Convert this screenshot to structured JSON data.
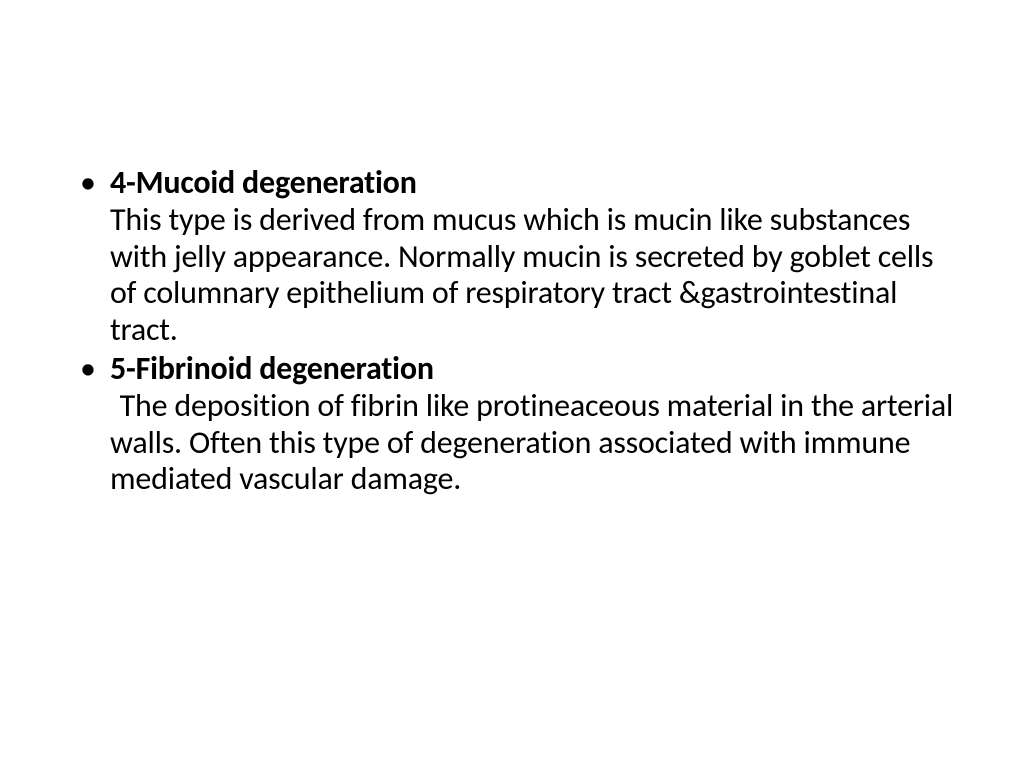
{
  "slide": {
    "background_color": "#ffffff",
    "text_color": "#000000",
    "font_family": "Calibri",
    "items": [
      {
        "heading": "4-Mucoid degeneration",
        "body": "This type is derived from mucus which is mucin like substances with jelly appearance. Normally mucin is secreted by goblet cells of columnary epithelium of respiratory tract &gastrointestinal tract."
      },
      {
        "heading": "5-Fibrinoid degeneration",
        "body": "The deposition of fibrin like protineaceous material in the arterial walls. Often this type of degeneration associated with immune mediated vascular damage."
      }
    ],
    "typography": {
      "heading_fontsize_pt": 24,
      "heading_weight": "bold",
      "body_fontsize_pt": 24,
      "body_weight": "normal",
      "line_height": 1.15
    },
    "bullet": {
      "glyph": "•",
      "color": "#000000"
    }
  }
}
